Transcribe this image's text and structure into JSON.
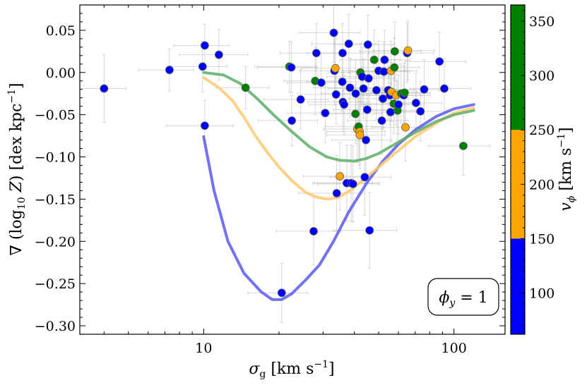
{
  "chart_data": {
    "type": "scatter",
    "xlabel": "σ_g [km s⁻¹]",
    "ylabel": "∇ (log₁₀ Z) [dex kpc⁻¹]",
    "xscale": "log",
    "xlim": [
      3.2,
      160
    ],
    "ylim": [
      -0.31,
      0.08
    ],
    "xticks": [
      {
        "value": 10,
        "label": "10"
      },
      {
        "value": 100,
        "label": "100"
      }
    ],
    "yticks": [
      {
        "value": 0.05,
        "label": "0.05"
      },
      {
        "value": 0.0,
        "label": "0.00"
      },
      {
        "value": -0.05,
        "label": "−0.05"
      },
      {
        "value": -0.1,
        "label": "−0.10"
      },
      {
        "value": -0.15,
        "label": "−0.15"
      },
      {
        "value": -0.2,
        "label": "−0.20"
      },
      {
        "value": -0.25,
        "label": "−0.25"
      },
      {
        "value": -0.3,
        "label": "−0.30"
      }
    ],
    "colorbar": {
      "label": "v_φ [km s⁻¹]",
      "range": [
        62,
        365
      ],
      "bands": [
        {
          "from": 62,
          "to": 150,
          "color": "#0000ff"
        },
        {
          "from": 150,
          "to": 250,
          "color": "#ffa500"
        },
        {
          "from": 250,
          "to": 365,
          "color": "#008000"
        }
      ],
      "ticks": [
        {
          "value": 100,
          "label": "100"
        },
        {
          "value": 150,
          "label": "150"
        },
        {
          "value": 200,
          "label": "200"
        },
        {
          "value": 250,
          "label": "250"
        },
        {
          "value": 300,
          "label": "300"
        },
        {
          "value": 350,
          "label": "350"
        }
      ]
    },
    "annotation": "ϕ_y = 1",
    "points": [
      {
        "x": 4.0,
        "y": -0.019,
        "xerr": 0.9,
        "yerr": 0.04,
        "c": "blue"
      },
      {
        "x": 7.3,
        "y": 0.003,
        "xerr": 1.8,
        "yerr": 0.025,
        "c": "blue"
      },
      {
        "x": 9.9,
        "y": 0.007,
        "xerr": 2.5,
        "yerr": 0.03,
        "c": "blue"
      },
      {
        "x": 10.1,
        "y": 0.032,
        "xerr": 2.5,
        "yerr": 0.025,
        "c": "blue"
      },
      {
        "x": 10.1,
        "y": -0.063,
        "xerr": 3.0,
        "yerr": 0.03,
        "c": "blue"
      },
      {
        "x": 11.5,
        "y": 0.021,
        "xerr": 3.5,
        "yerr": 0.03,
        "c": "blue"
      },
      {
        "x": 14.7,
        "y": -0.018,
        "xerr": 3.5,
        "yerr": 0.025,
        "c": "green"
      },
      {
        "x": 20.5,
        "y": -0.261,
        "xerr": 5.5,
        "yerr": 0.035,
        "c": "blue"
      },
      {
        "x": 22.0,
        "y": 0.007,
        "xerr": 6.0,
        "yerr": 0.03,
        "c": "green"
      },
      {
        "x": 22.4,
        "y": 0.006,
        "xerr": 6.0,
        "yerr": 0.03,
        "c": "blue"
      },
      {
        "x": 22.5,
        "y": -0.057,
        "xerr": 6.0,
        "yerr": 0.03,
        "c": "blue"
      },
      {
        "x": 24.4,
        "y": -0.032,
        "xerr": 7.0,
        "yerr": 0.035,
        "c": "blue"
      },
      {
        "x": 27.5,
        "y": -0.188,
        "xerr": 8.0,
        "yerr": 0.04,
        "c": "blue"
      },
      {
        "x": 27.9,
        "y": -0.01,
        "xerr": 7.0,
        "yerr": 0.04,
        "c": "green"
      },
      {
        "x": 28.2,
        "y": 0.023,
        "xerr": 8.0,
        "yerr": 0.035,
        "c": "blue"
      },
      {
        "x": 29.5,
        "y": -0.012,
        "xerr": 8.0,
        "yerr": 0.035,
        "c": "blue"
      },
      {
        "x": 30.6,
        "y": -0.048,
        "xerr": 9.0,
        "yerr": 0.035,
        "c": "blue"
      },
      {
        "x": 33.1,
        "y": 0.047,
        "xerr": 9.0,
        "yerr": 0.035,
        "c": "blue"
      },
      {
        "x": 33.3,
        "y": 0.002,
        "xerr": 9.0,
        "yerr": 0.04,
        "c": "blue"
      },
      {
        "x": 33.6,
        "y": 0.005,
        "xerr": 9.0,
        "yerr": 0.035,
        "c": "orange"
      },
      {
        "x": 33.8,
        "y": -0.026,
        "xerr": 10.0,
        "yerr": 0.035,
        "c": "blue"
      },
      {
        "x": 34.0,
        "y": -0.143,
        "xerr": 10.0,
        "yerr": 0.045,
        "c": "blue"
      },
      {
        "x": 35.0,
        "y": -0.123,
        "xerr": 10.0,
        "yerr": 0.04,
        "c": "orange"
      },
      {
        "x": 35.8,
        "y": -0.011,
        "xerr": 10.0,
        "yerr": 0.035,
        "c": "blue"
      },
      {
        "x": 35.9,
        "y": 0.023,
        "xerr": 10.0,
        "yerr": 0.035,
        "c": "blue"
      },
      {
        "x": 36.0,
        "y": -0.035,
        "xerr": 10.0,
        "yerr": 0.035,
        "c": "blue"
      },
      {
        "x": 36.4,
        "y": -0.038,
        "xerr": 10.0,
        "yerr": 0.035,
        "c": "blue"
      },
      {
        "x": 37.3,
        "y": -0.131,
        "xerr": 10.0,
        "yerr": 0.045,
        "c": "blue"
      },
      {
        "x": 38.0,
        "y": 0.034,
        "xerr": 11.0,
        "yerr": 0.035,
        "c": "blue"
      },
      {
        "x": 38.4,
        "y": -0.018,
        "xerr": 11.0,
        "yerr": 0.035,
        "c": "blue"
      },
      {
        "x": 38.8,
        "y": -0.131,
        "xerr": 11.0,
        "yerr": 0.045,
        "c": "blue"
      },
      {
        "x": 39.5,
        "y": -0.132,
        "xerr": 11.0,
        "yerr": 0.045,
        "c": "blue"
      },
      {
        "x": 40.4,
        "y": -0.049,
        "xerr": 11.0,
        "yerr": 0.035,
        "c": "green"
      },
      {
        "x": 40.5,
        "y": -0.025,
        "xerr": 11.0,
        "yerr": 0.04,
        "c": "blue"
      },
      {
        "x": 41.1,
        "y": -0.067,
        "xerr": 11.0,
        "yerr": 0.04,
        "c": "orange"
      },
      {
        "x": 41.6,
        "y": -0.064,
        "xerr": 11.0,
        "yerr": 0.04,
        "c": "green"
      },
      {
        "x": 42.0,
        "y": -0.07,
        "xerr": 11.0,
        "yerr": 0.04,
        "c": "orange"
      },
      {
        "x": 42.1,
        "y": -0.074,
        "xerr": 11.0,
        "yerr": 0.04,
        "c": "orange"
      },
      {
        "x": 42.3,
        "y": 0.0,
        "xerr": 11.0,
        "yerr": 0.035,
        "c": "green"
      },
      {
        "x": 43.0,
        "y": -0.005,
        "xerr": 12.0,
        "yerr": 0.035,
        "c": "blue"
      },
      {
        "x": 43.5,
        "y": -0.019,
        "xerr": 12.0,
        "yerr": 0.035,
        "c": "blue"
      },
      {
        "x": 44.0,
        "y": -0.124,
        "xerr": 12.0,
        "yerr": 0.045,
        "c": "blue"
      },
      {
        "x": 44.5,
        "y": -0.08,
        "xerr": 12.0,
        "yerr": 0.04,
        "c": "blue"
      },
      {
        "x": 45.0,
        "y": -0.044,
        "xerr": 12.0,
        "yerr": 0.035,
        "c": "blue"
      },
      {
        "x": 45.3,
        "y": 0.033,
        "xerr": 12.0,
        "yerr": 0.035,
        "c": "blue"
      },
      {
        "x": 45.6,
        "y": -0.007,
        "xerr": 12.0,
        "yerr": 0.035,
        "c": "blue"
      },
      {
        "x": 46.0,
        "y": -0.187,
        "xerr": 13.0,
        "yerr": 0.045,
        "c": "blue"
      },
      {
        "x": 48.0,
        "y": 0.015,
        "xerr": 13.0,
        "yerr": 0.035,
        "c": "green"
      },
      {
        "x": 49.0,
        "y": -0.021,
        "xerr": 13.0,
        "yerr": 0.035,
        "c": "blue"
      },
      {
        "x": 50.0,
        "y": 0.002,
        "xerr": 14.0,
        "yerr": 0.035,
        "c": "blue"
      },
      {
        "x": 51.5,
        "y": -0.057,
        "xerr": 14.0,
        "yerr": 0.04,
        "c": "blue"
      },
      {
        "x": 52.0,
        "y": -0.031,
        "xerr": 14.0,
        "yerr": 0.035,
        "c": "blue"
      },
      {
        "x": 52.5,
        "y": 0.001,
        "xerr": 14.0,
        "yerr": 0.035,
        "c": "blue"
      },
      {
        "x": 52.8,
        "y": 0.015,
        "xerr": 14.0,
        "yerr": 0.035,
        "c": "blue"
      },
      {
        "x": 54.6,
        "y": -0.021,
        "xerr": 15.0,
        "yerr": 0.035,
        "c": "blue"
      },
      {
        "x": 55.5,
        "y": -0.027,
        "xerr": 15.0,
        "yerr": 0.035,
        "c": "blue"
      },
      {
        "x": 55.8,
        "y": -0.047,
        "xerr": 15.0,
        "yerr": 0.035,
        "c": "blue"
      },
      {
        "x": 56.0,
        "y": 0.002,
        "xerr": 15.0,
        "yerr": 0.035,
        "c": "orange"
      },
      {
        "x": 56.3,
        "y": -0.023,
        "xerr": 15.0,
        "yerr": 0.035,
        "c": "orange"
      },
      {
        "x": 57.5,
        "y": -0.037,
        "xerr": 15.0,
        "yerr": 0.035,
        "c": "green"
      },
      {
        "x": 57.8,
        "y": 0.006,
        "xerr": 15.0,
        "yerr": 0.035,
        "c": "green"
      },
      {
        "x": 58.0,
        "y": 0.025,
        "xerr": 16.0,
        "yerr": 0.035,
        "c": "green"
      },
      {
        "x": 58.7,
        "y": -0.027,
        "xerr": 16.0,
        "yerr": 0.035,
        "c": "orange"
      },
      {
        "x": 59.5,
        "y": -0.045,
        "xerr": 16.0,
        "yerr": 0.035,
        "c": "green"
      },
      {
        "x": 60.0,
        "y": -0.038,
        "xerr": 16.0,
        "yerr": 0.035,
        "c": "blue"
      },
      {
        "x": 61.5,
        "y": -0.025,
        "xerr": 17.0,
        "yerr": 0.035,
        "c": "green"
      },
      {
        "x": 63.0,
        "y": -0.027,
        "xerr": 17.0,
        "yerr": 0.035,
        "c": "blue"
      },
      {
        "x": 63.5,
        "y": -0.024,
        "xerr": 17.0,
        "yerr": 0.035,
        "c": "green"
      },
      {
        "x": 64.0,
        "y": -0.065,
        "xerr": 17.0,
        "yerr": 0.04,
        "c": "orange"
      },
      {
        "x": 65.0,
        "y": 0.023,
        "xerr": 18.0,
        "yerr": 0.035,
        "c": "blue"
      },
      {
        "x": 65.5,
        "y": 0.026,
        "xerr": 18.0,
        "yerr": 0.035,
        "c": "orange"
      },
      {
        "x": 70.5,
        "y": -0.036,
        "xerr": 19.0,
        "yerr": 0.035,
        "c": "blue"
      },
      {
        "x": 73.5,
        "y": -0.046,
        "xerr": 20.0,
        "yerr": 0.035,
        "c": "blue"
      },
      {
        "x": 76.0,
        "y": -0.02,
        "xerr": 21.0,
        "yerr": 0.035,
        "c": "blue"
      },
      {
        "x": 87.5,
        "y": 0.013,
        "xerr": 24.0,
        "yerr": 0.035,
        "c": "blue"
      },
      {
        "x": 91.5,
        "y": -0.019,
        "xerr": 25.0,
        "yerr": 0.035,
        "c": "blue"
      },
      {
        "x": 109.0,
        "y": -0.087,
        "xerr": 30.0,
        "yerr": 0.035,
        "c": "green"
      }
    ],
    "curves": [
      {
        "color": "#5a5af0",
        "points": [
          [
            10,
            -0.076
          ],
          [
            11.0,
            -0.14
          ],
          [
            12.5,
            -0.2
          ],
          [
            14.5,
            -0.238
          ],
          [
            17.0,
            -0.26
          ],
          [
            18.8,
            -0.269
          ],
          [
            20.5,
            -0.269
          ],
          [
            22.5,
            -0.262
          ],
          [
            25.5,
            -0.246
          ],
          [
            29.0,
            -0.228
          ],
          [
            33.0,
            -0.2
          ],
          [
            38.0,
            -0.165
          ],
          [
            45.0,
            -0.13
          ],
          [
            52.0,
            -0.105
          ],
          [
            60.0,
            -0.085
          ],
          [
            70.0,
            -0.068
          ],
          [
            85.0,
            -0.052
          ],
          [
            100.0,
            -0.043
          ],
          [
            120.0,
            -0.038
          ]
        ]
      },
      {
        "color": "#ffc870",
        "points": [
          [
            10,
            -0.006
          ],
          [
            11.5,
            -0.018
          ],
          [
            13.0,
            -0.033
          ],
          [
            14.5,
            -0.053
          ],
          [
            16.0,
            -0.074
          ],
          [
            18.0,
            -0.095
          ],
          [
            20.0,
            -0.112
          ],
          [
            22.5,
            -0.128
          ],
          [
            25.5,
            -0.142
          ],
          [
            28.5,
            -0.148
          ],
          [
            31.5,
            -0.15
          ],
          [
            34.5,
            -0.148
          ],
          [
            38.5,
            -0.14
          ],
          [
            43.0,
            -0.128
          ],
          [
            50.0,
            -0.112
          ],
          [
            58.0,
            -0.096
          ],
          [
            70.0,
            -0.076
          ],
          [
            85.0,
            -0.06
          ],
          [
            100.0,
            -0.048
          ],
          [
            120.0,
            -0.042
          ]
        ]
      },
      {
        "color": "#5fae6a",
        "points": [
          [
            10,
            -0.0
          ],
          [
            12.0,
            -0.003
          ],
          [
            14.0,
            -0.013
          ],
          [
            16.5,
            -0.032
          ],
          [
            19.0,
            -0.05
          ],
          [
            22.5,
            -0.07
          ],
          [
            26.5,
            -0.088
          ],
          [
            31.0,
            -0.1
          ],
          [
            35.0,
            -0.104
          ],
          [
            40.0,
            -0.105
          ],
          [
            44.5,
            -0.102
          ],
          [
            50.0,
            -0.096
          ],
          [
            58.0,
            -0.085
          ],
          [
            70.0,
            -0.071
          ],
          [
            85.0,
            -0.058
          ],
          [
            100.0,
            -0.05
          ],
          [
            120.0,
            -0.045
          ]
        ]
      }
    ]
  }
}
